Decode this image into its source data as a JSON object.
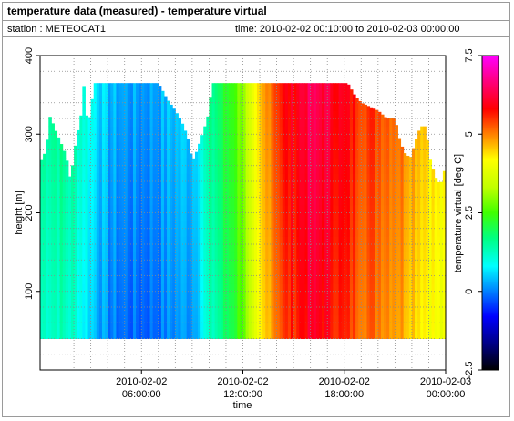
{
  "header": {
    "title": "temperature data (measured) - temperature virtual",
    "station": "station : METEOCAT1",
    "time_range": "time: 2010-02-02 00:10:00 to 2010-02-03 00:00:00"
  },
  "chart_data": {
    "type": "heatmap",
    "title": "temperature data (measured) - temperature virtual",
    "xlabel": "time",
    "ylabel": "height [m]",
    "colorbar_label": "temperature virtual [deg C]",
    "xlim": [
      "2010-02-02 00:00:00",
      "2010-02-03 00:00:00"
    ],
    "ylim": [
      0,
      400
    ],
    "clim": [
      -2.5,
      7.5
    ],
    "x_ticks": [
      {
        "value": "2010-02-02 06:00:00",
        "line1": "2010-02-02",
        "line2": "06:00:00"
      },
      {
        "value": "2010-02-02 12:00:00",
        "line1": "2010-02-02",
        "line2": "12:00:00"
      },
      {
        "value": "2010-02-02 18:00:00",
        "line1": "2010-02-02",
        "line2": "18:00:00"
      },
      {
        "value": "2010-02-03 00:00:00",
        "line1": "2010-02-03",
        "line2": "00:00:00"
      }
    ],
    "y_ticks": [
      {
        "value": 400,
        "label": "400"
      },
      {
        "value": 300,
        "label": "300"
      },
      {
        "value": 200,
        "label": "200"
      },
      {
        "value": 100,
        "label": "100"
      }
    ],
    "colorbar_ticks": [
      {
        "value": 7.5,
        "label": "7.5"
      },
      {
        "value": 5,
        "label": "5"
      },
      {
        "value": 2.5,
        "label": "2.5"
      },
      {
        "value": 0,
        "label": "0"
      },
      {
        "value": -2.5,
        "label": "-2.5"
      }
    ],
    "grid": true,
    "height_min_m": 40,
    "time_step_min": 10,
    "max_height_profile_m": [
      [
        0.0,
        265
      ],
      [
        0.2,
        270
      ],
      [
        0.4,
        290
      ],
      [
        0.6,
        325
      ],
      [
        0.8,
        310
      ],
      [
        1.0,
        300
      ],
      [
        1.2,
        290
      ],
      [
        1.4,
        280
      ],
      [
        1.6,
        265
      ],
      [
        1.8,
        240
      ],
      [
        2.0,
        275
      ],
      [
        2.2,
        300
      ],
      [
        2.4,
        320
      ],
      [
        2.6,
        365
      ],
      [
        2.8,
        310
      ],
      [
        3.0,
        330
      ],
      [
        3.2,
        365
      ],
      [
        3.4,
        365
      ],
      [
        6.0,
        365
      ],
      [
        7.0,
        365
      ],
      [
        7.5,
        345
      ],
      [
        8.0,
        330
      ],
      [
        8.5,
        310
      ],
      [
        8.8,
        290
      ],
      [
        9.0,
        265
      ],
      [
        9.3,
        280
      ],
      [
        9.6,
        300
      ],
      [
        9.9,
        320
      ],
      [
        10.2,
        365
      ],
      [
        14.5,
        365
      ],
      [
        18.2,
        365
      ],
      [
        18.6,
        350
      ],
      [
        19.0,
        340
      ],
      [
        20.0,
        330
      ],
      [
        20.5,
        320
      ],
      [
        21.0,
        320
      ],
      [
        21.3,
        290
      ],
      [
        21.6,
        275
      ],
      [
        21.9,
        270
      ],
      [
        22.2,
        290
      ],
      [
        22.5,
        310
      ],
      [
        22.8,
        310
      ],
      [
        23.1,
        265
      ],
      [
        23.4,
        245
      ],
      [
        23.7,
        235
      ],
      [
        24.0,
        260
      ]
    ],
    "temperature_keyframes_degC": [
      [
        0.0,
        1.4
      ],
      [
        1.0,
        1.5
      ],
      [
        2.0,
        1.3
      ],
      [
        3.0,
        0.8
      ],
      [
        4.0,
        0.2
      ],
      [
        5.0,
        0.05
      ],
      [
        6.0,
        0.0
      ],
      [
        7.0,
        0.1
      ],
      [
        8.0,
        0.3
      ],
      [
        9.0,
        0.4
      ],
      [
        9.5,
        0.9
      ],
      [
        10.0,
        1.3
      ],
      [
        11.0,
        2.0
      ],
      [
        11.5,
        2.4
      ],
      [
        12.0,
        2.9
      ],
      [
        12.5,
        3.4
      ],
      [
        13.0,
        4.2
      ],
      [
        13.5,
        4.9
      ],
      [
        14.0,
        5.4
      ],
      [
        15.0,
        5.8
      ],
      [
        16.0,
        6.2
      ],
      [
        17.0,
        6.0
      ],
      [
        18.0,
        5.7
      ],
      [
        19.0,
        5.4
      ],
      [
        20.0,
        5.3
      ],
      [
        21.0,
        5.1
      ],
      [
        22.0,
        4.8
      ],
      [
        23.0,
        4.4
      ],
      [
        24.0,
        4.0
      ]
    ]
  }
}
